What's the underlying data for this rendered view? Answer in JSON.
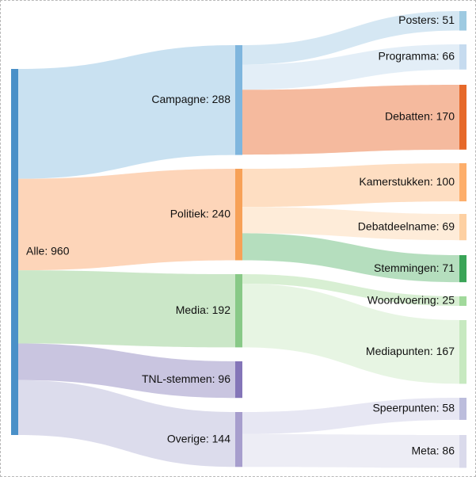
{
  "nodes": [
    {
      "id": "alle",
      "label": "Alle: 960",
      "color": "#4a90c8"
    },
    {
      "id": "campagne",
      "label": "Campagne: 288",
      "color": "#7fb6de"
    },
    {
      "id": "politiek",
      "label": "Politiek: 240",
      "color": "#f7a157"
    },
    {
      "id": "media",
      "label": "Media: 192",
      "color": "#88c987"
    },
    {
      "id": "tnl",
      "label": "TNL-stemmen: 96",
      "color": "#8475b8"
    },
    {
      "id": "overige",
      "label": "Overige: 144",
      "color": "#a79ecd"
    },
    {
      "id": "posters",
      "label": "Posters: 51",
      "color": "#9ecae1"
    },
    {
      "id": "programma",
      "label": "Programma: 66",
      "color": "#c6dbef"
    },
    {
      "id": "debatten",
      "label": "Debatten: 170",
      "color": "#e6692a"
    },
    {
      "id": "kamerstukken",
      "label": "Kamerstukken: 100",
      "color": "#fdae6b"
    },
    {
      "id": "debatdeelname",
      "label": "Debatdeelname: 69",
      "color": "#fdd0a2"
    },
    {
      "id": "stemmingen",
      "label": "Stemmingen: 71",
      "color": "#3aa457"
    },
    {
      "id": "woordvoering",
      "label": "Woordvoering: 25",
      "color": "#a1d99b"
    },
    {
      "id": "mediapunten",
      "label": "Mediapunten: 167",
      "color": "#c7e9c0"
    },
    {
      "id": "speerpunten",
      "label": "Speerpunten: 58",
      "color": "#bcbddc"
    },
    {
      "id": "meta",
      "label": "Meta: 86",
      "color": "#dadaeb"
    }
  ],
  "links": [
    {
      "source": "alle",
      "target": "campagne",
      "value": 288,
      "color": "#c6dff0"
    },
    {
      "source": "alle",
      "target": "politiek",
      "value": 240,
      "color": "#fdd3b5"
    },
    {
      "source": "alle",
      "target": "media",
      "value": 192,
      "color": "#c8e6c5"
    },
    {
      "source": "alle",
      "target": "tnl",
      "value": 96,
      "color": "#c6c2de"
    },
    {
      "source": "alle",
      "target": "overige",
      "value": 144,
      "color": "#dadaeb"
    },
    {
      "source": "campagne",
      "target": "posters",
      "value": 51,
      "color": "#d3e6f2"
    },
    {
      "source": "campagne",
      "target": "programma",
      "value": 66,
      "color": "#e2edf7"
    },
    {
      "source": "campagne",
      "target": "debatten",
      "value": 170,
      "color": "#f4b699"
    },
    {
      "source": "politiek",
      "target": "kamerstukken",
      "value": 100,
      "color": "#fedcbf"
    },
    {
      "source": "politiek",
      "target": "debatdeelname",
      "value": 69,
      "color": "#feebd7"
    },
    {
      "source": "politiek",
      "target": "stemmingen",
      "value": 71,
      "color": "#b1dcba"
    },
    {
      "source": "media",
      "target": "woordvoering",
      "value": 25,
      "color": "#d6eed1"
    },
    {
      "source": "media",
      "target": "mediapunten",
      "value": 167,
      "color": "#e6f4e2"
    },
    {
      "source": "overige",
      "target": "speerpunten",
      "value": 58,
      "color": "#e6e6f2"
    },
    {
      "source": "overige",
      "target": "meta",
      "value": 86,
      "color": "#ececf4"
    }
  ]
}
